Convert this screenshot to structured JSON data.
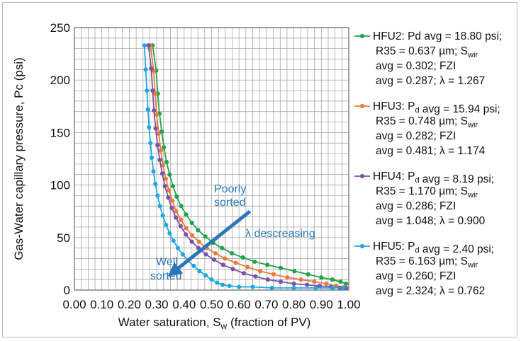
{
  "chart_data": {
    "type": "line",
    "xlabel": "Water saturation, S",
    "xlabel_sub": "w",
    "xlabel_suffix": " (fraction of PV)",
    "ylabel": "Gas-Water capillary pressure, Pc (psi)",
    "xlim": [
      0,
      1
    ],
    "ylim": [
      0,
      250
    ],
    "x_ticks": [
      0.0,
      0.1,
      0.2,
      0.3,
      0.4,
      0.5,
      0.6,
      0.7,
      0.8,
      0.9,
      1.0
    ],
    "x_tick_labels": [
      "0.00",
      "0.10",
      "0.20",
      "0.30",
      "0.40",
      "0.50",
      "0.60",
      "0.70",
      "0.80",
      "0.90",
      "1.00"
    ],
    "y_ticks": [
      0,
      50,
      100,
      150,
      200,
      250
    ],
    "y_tick_labels": [
      "0",
      "50",
      "100",
      "150",
      "200",
      "250"
    ],
    "grid": true,
    "x_grid_step": 0.025,
    "y_grid_step": 10,
    "series": [
      {
        "name": "HFU2",
        "color": "#22a34a",
        "legend_lines": [
          [
            "HFU2: Pd avg = 18.80 psi;"
          ],
          [
            "R35 = 0.637 µm; S",
            {
              "sub": "wir"
            }
          ],
          [
            "avg = 0.302; FZI"
          ],
          [
            "avg = 0.287; λ = 1.267"
          ]
        ],
        "x": [
          0.285,
          0.298,
          0.304,
          0.31,
          0.318,
          0.326,
          0.336,
          0.347,
          0.359,
          0.373,
          0.389,
          0.407,
          0.428,
          0.451,
          0.477,
          0.506,
          0.538,
          0.574,
          0.614,
          0.657,
          0.703,
          0.752,
          0.802,
          0.852,
          0.9,
          0.94,
          0.97,
          0.99
        ],
        "y": [
          233,
          209,
          187,
          168,
          151,
          136,
          122,
          110,
          99,
          89,
          80,
          72,
          64,
          57,
          51,
          45,
          40,
          35,
          31,
          27,
          24,
          21,
          18,
          15,
          12,
          10,
          8,
          6
        ]
      },
      {
        "name": "HFU3",
        "color": "#ec7a3c",
        "legend_lines": [
          [
            "HFU3: P",
            {
              "sub": "d"
            },
            " avg = 15.94 psi;"
          ],
          [
            "R35 = 0.748 µm; S",
            {
              "sub": "wir"
            }
          ],
          [
            "avg = 0.282; FZI"
          ],
          [
            "avg = 0.481; λ = 1.174"
          ]
        ],
        "x": [
          0.277,
          0.289,
          0.294,
          0.3,
          0.307,
          0.315,
          0.323,
          0.333,
          0.344,
          0.357,
          0.371,
          0.388,
          0.407,
          0.429,
          0.454,
          0.482,
          0.514,
          0.549,
          0.588,
          0.631,
          0.677,
          0.726,
          0.776,
          0.826,
          0.874,
          0.918,
          0.955,
          0.985
        ],
        "y": [
          233,
          209,
          187,
          167,
          149,
          133,
          119,
          106,
          95,
          85,
          75,
          67,
          59,
          52,
          46,
          40,
          35,
          30,
          26,
          22,
          18,
          15,
          12,
          10,
          8,
          6,
          4,
          3
        ]
      },
      {
        "name": "HFU4",
        "color": "#7b52a8",
        "legend_lines": [
          [
            "HFU4: P",
            {
              "sub": "d"
            },
            " avg = 8.19 psi;"
          ],
          [
            "R35 = 1.170 µm; S",
            {
              "sub": "wir"
            }
          ],
          [
            "avg = 0.286; FZI"
          ],
          [
            "avg = 1.048; λ = 0.900"
          ]
        ],
        "x": [
          0.27,
          0.28,
          0.285,
          0.29,
          0.296,
          0.303,
          0.311,
          0.32,
          0.33,
          0.342,
          0.355,
          0.37,
          0.387,
          0.406,
          0.428,
          0.452,
          0.479,
          0.509,
          0.542,
          0.578,
          0.617,
          0.66,
          0.705,
          0.752,
          0.8,
          0.848,
          0.894,
          0.935,
          0.968,
          0.99
        ],
        "y": [
          233,
          211,
          190,
          171,
          154,
          138,
          124,
          111,
          99,
          88,
          78,
          69,
          61,
          53,
          46,
          40,
          34,
          29,
          24,
          20,
          16,
          13,
          10,
          8,
          6,
          5,
          4,
          3,
          2,
          2
        ]
      },
      {
        "name": "HFU5",
        "color": "#1fa7e2",
        "legend_lines": [
          [
            "HFU5: P",
            {
              "sub": "d"
            },
            " avg = 2.40 psi;"
          ],
          [
            "R35 = 6.163 µm; S",
            {
              "sub": "wir"
            }
          ],
          [
            "avg = 0.260; FZI"
          ],
          [
            "avg = 2.324; λ = 0.762"
          ]
        ],
        "x": [
          0.255,
          0.26,
          0.264,
          0.268,
          0.272,
          0.277,
          0.282,
          0.288,
          0.295,
          0.303,
          0.312,
          0.322,
          0.334,
          0.347,
          0.361,
          0.377,
          0.395,
          0.414,
          0.435,
          0.456,
          0.478,
          0.5,
          0.52,
          0.54,
          0.565,
          0.6,
          0.65,
          0.72,
          0.8,
          0.88,
          0.94,
          0.98
        ],
        "y": [
          233,
          210,
          190,
          172,
          155,
          140,
          126,
          113,
          101,
          90,
          80,
          71,
          62,
          54,
          47,
          40,
          34,
          28,
          23,
          18,
          14,
          10,
          7,
          5,
          4,
          3,
          3,
          2,
          2,
          2,
          2,
          2
        ]
      }
    ],
    "annotations": {
      "poorly_sorted_line1": "Poorly",
      "poorly_sorted_line2": "sorted",
      "lambda_label": "λ descreasing",
      "well_sorted_line1": "Well",
      "well_sorted_line2": "sorted",
      "arrow_from": [
        0.64,
        75
      ],
      "arrow_to": [
        0.36,
        17
      ]
    }
  }
}
